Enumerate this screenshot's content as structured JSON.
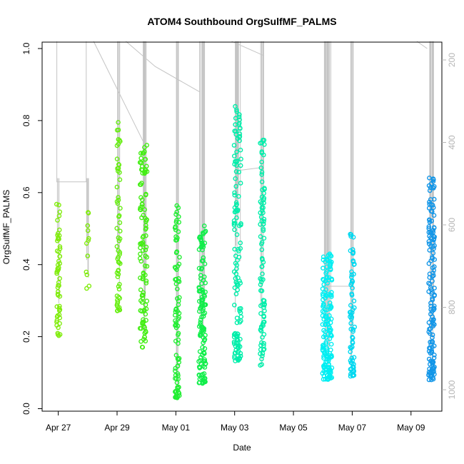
{
  "chart_data": {
    "type": "scatter",
    "title": "ATOM4 Southbound OrgSulfMF_PALMS",
    "xlabel": "Date",
    "ylabel": "OrgSulfMF_PALMS",
    "x_ticks": [
      "Apr 27",
      "Apr 29",
      "May 01",
      "May 03",
      "May 05",
      "May 07",
      "May 09"
    ],
    "x_tick_values": [
      0,
      2,
      4,
      6,
      8,
      10,
      12
    ],
    "xlim": [
      -0.55,
      13.05
    ],
    "ylim": [
      0,
      1
    ],
    "y_ticks": [
      "0.0",
      "0.2",
      "0.4",
      "0.6",
      "0.8",
      "1.0"
    ],
    "y_tick_values": [
      0,
      0.2,
      0.4,
      0.6,
      0.8,
      1.0
    ],
    "right_axis": {
      "ticks": [
        "200",
        "400",
        "600",
        "800",
        "1000"
      ],
      "tick_values": [
        200,
        400,
        600,
        800,
        1000
      ],
      "lim": [
        1060,
        150
      ],
      "color": "#b5b5b5"
    },
    "clusters": [
      {
        "x": 0.0,
        "jitter": 0.06,
        "ymin": 0.2,
        "ymax": 0.58,
        "n": 55,
        "color": "#80ec0c",
        "top": 0.62
      },
      {
        "x": 1.0,
        "jitter": 0.05,
        "ymin": 0.33,
        "ymax": 0.55,
        "n": 12,
        "color": "#80ec0c",
        "top": 0.62
      },
      {
        "x": 2.05,
        "jitter": 0.06,
        "ymin": 0.27,
        "ymax": 0.8,
        "n": 60,
        "color": "#66ee10",
        "top": 1.0
      },
      {
        "x": 2.9,
        "jitter": 0.12,
        "ymin": 0.17,
        "ymax": 0.74,
        "n": 110,
        "color": "#44ee14",
        "top": 1.0
      },
      {
        "x": 4.05,
        "jitter": 0.08,
        "ymin": 0.03,
        "ymax": 0.58,
        "n": 90,
        "color": "#22ee33",
        "top": 1.0
      },
      {
        "x": 4.9,
        "jitter": 0.12,
        "ymin": 0.07,
        "ymax": 0.51,
        "n": 130,
        "color": "#11ee4a",
        "top": 1.0
      },
      {
        "x": 6.1,
        "jitter": 0.12,
        "ymin": 0.13,
        "ymax": 0.84,
        "n": 130,
        "color": "#00eeaa",
        "top": 1.0
      },
      {
        "x": 6.95,
        "jitter": 0.08,
        "ymin": 0.12,
        "ymax": 0.75,
        "n": 90,
        "color": "#00eeaa",
        "top": 1.0
      },
      {
        "x": 9.15,
        "jitter": 0.16,
        "ymin": 0.08,
        "ymax": 0.44,
        "n": 160,
        "color": "#00eef2",
        "top": 1.0
      },
      {
        "x": 10.0,
        "jitter": 0.08,
        "ymin": 0.09,
        "ymax": 0.49,
        "n": 70,
        "color": "#00d8f0",
        "top": 1.0
      },
      {
        "x": 12.7,
        "jitter": 0.1,
        "ymin": 0.08,
        "ymax": 0.65,
        "n": 150,
        "color": "#1296e8",
        "top": 1.0
      }
    ],
    "grid": false,
    "legend": "none"
  }
}
